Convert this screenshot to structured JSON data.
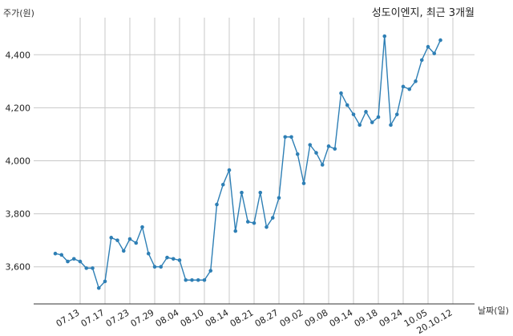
{
  "title": "성도이엔지, 최근 3개월",
  "y_unit_label": "주가(원)",
  "x_unit_label": "날짜(일)",
  "colors": {
    "line": "#2e7fb5",
    "point": "#2e7fb5",
    "grid": "#c8c8c8"
  },
  "chart_data": {
    "type": "line",
    "title": "성도이엔지, 최근 3개월",
    "ylabel": "주가(원)",
    "xlabel": "날짜(일)",
    "grid": true,
    "ylim": [
      3460,
      4540
    ],
    "yticks": [
      3600,
      3800,
      4000,
      4200,
      4400
    ],
    "ytick_labels": [
      "3,600",
      "3,800",
      "4,000",
      "4,200",
      "4,400"
    ],
    "xticks": [
      "07.13",
      "07.17",
      "07.23",
      "07.29",
      "08.04",
      "08.10",
      "08.14",
      "08.21",
      "08.27",
      "09.02",
      "09.08",
      "09.14",
      "09.18",
      "09.24",
      "10.05",
      "20.10.12"
    ],
    "xtick_at_point": [
      4,
      8,
      12,
      16,
      20,
      24,
      28,
      32,
      36,
      40,
      44,
      48,
      52,
      56,
      60,
      64
    ],
    "series": [
      {
        "values": [
          3650,
          3645,
          3620,
          3630,
          3620,
          3595,
          3595,
          3520,
          3545,
          3710,
          3700,
          3660,
          3705,
          3690,
          3750,
          3650,
          3600,
          3600,
          3635,
          3630,
          3625,
          3550,
          3550,
          3550,
          3550,
          3585,
          3835,
          3910,
          3965,
          3735,
          3880,
          3770,
          3765,
          3880,
          3750,
          3785,
          3860,
          4090,
          4090,
          4025,
          3915,
          4060,
          4030,
          3985,
          4055,
          4045,
          4255,
          4210,
          4175,
          4135,
          4185,
          4145,
          4165,
          4470,
          4135,
          4175,
          4280,
          4270,
          4300,
          4380,
          4430,
          4405,
          4455
        ]
      }
    ]
  }
}
